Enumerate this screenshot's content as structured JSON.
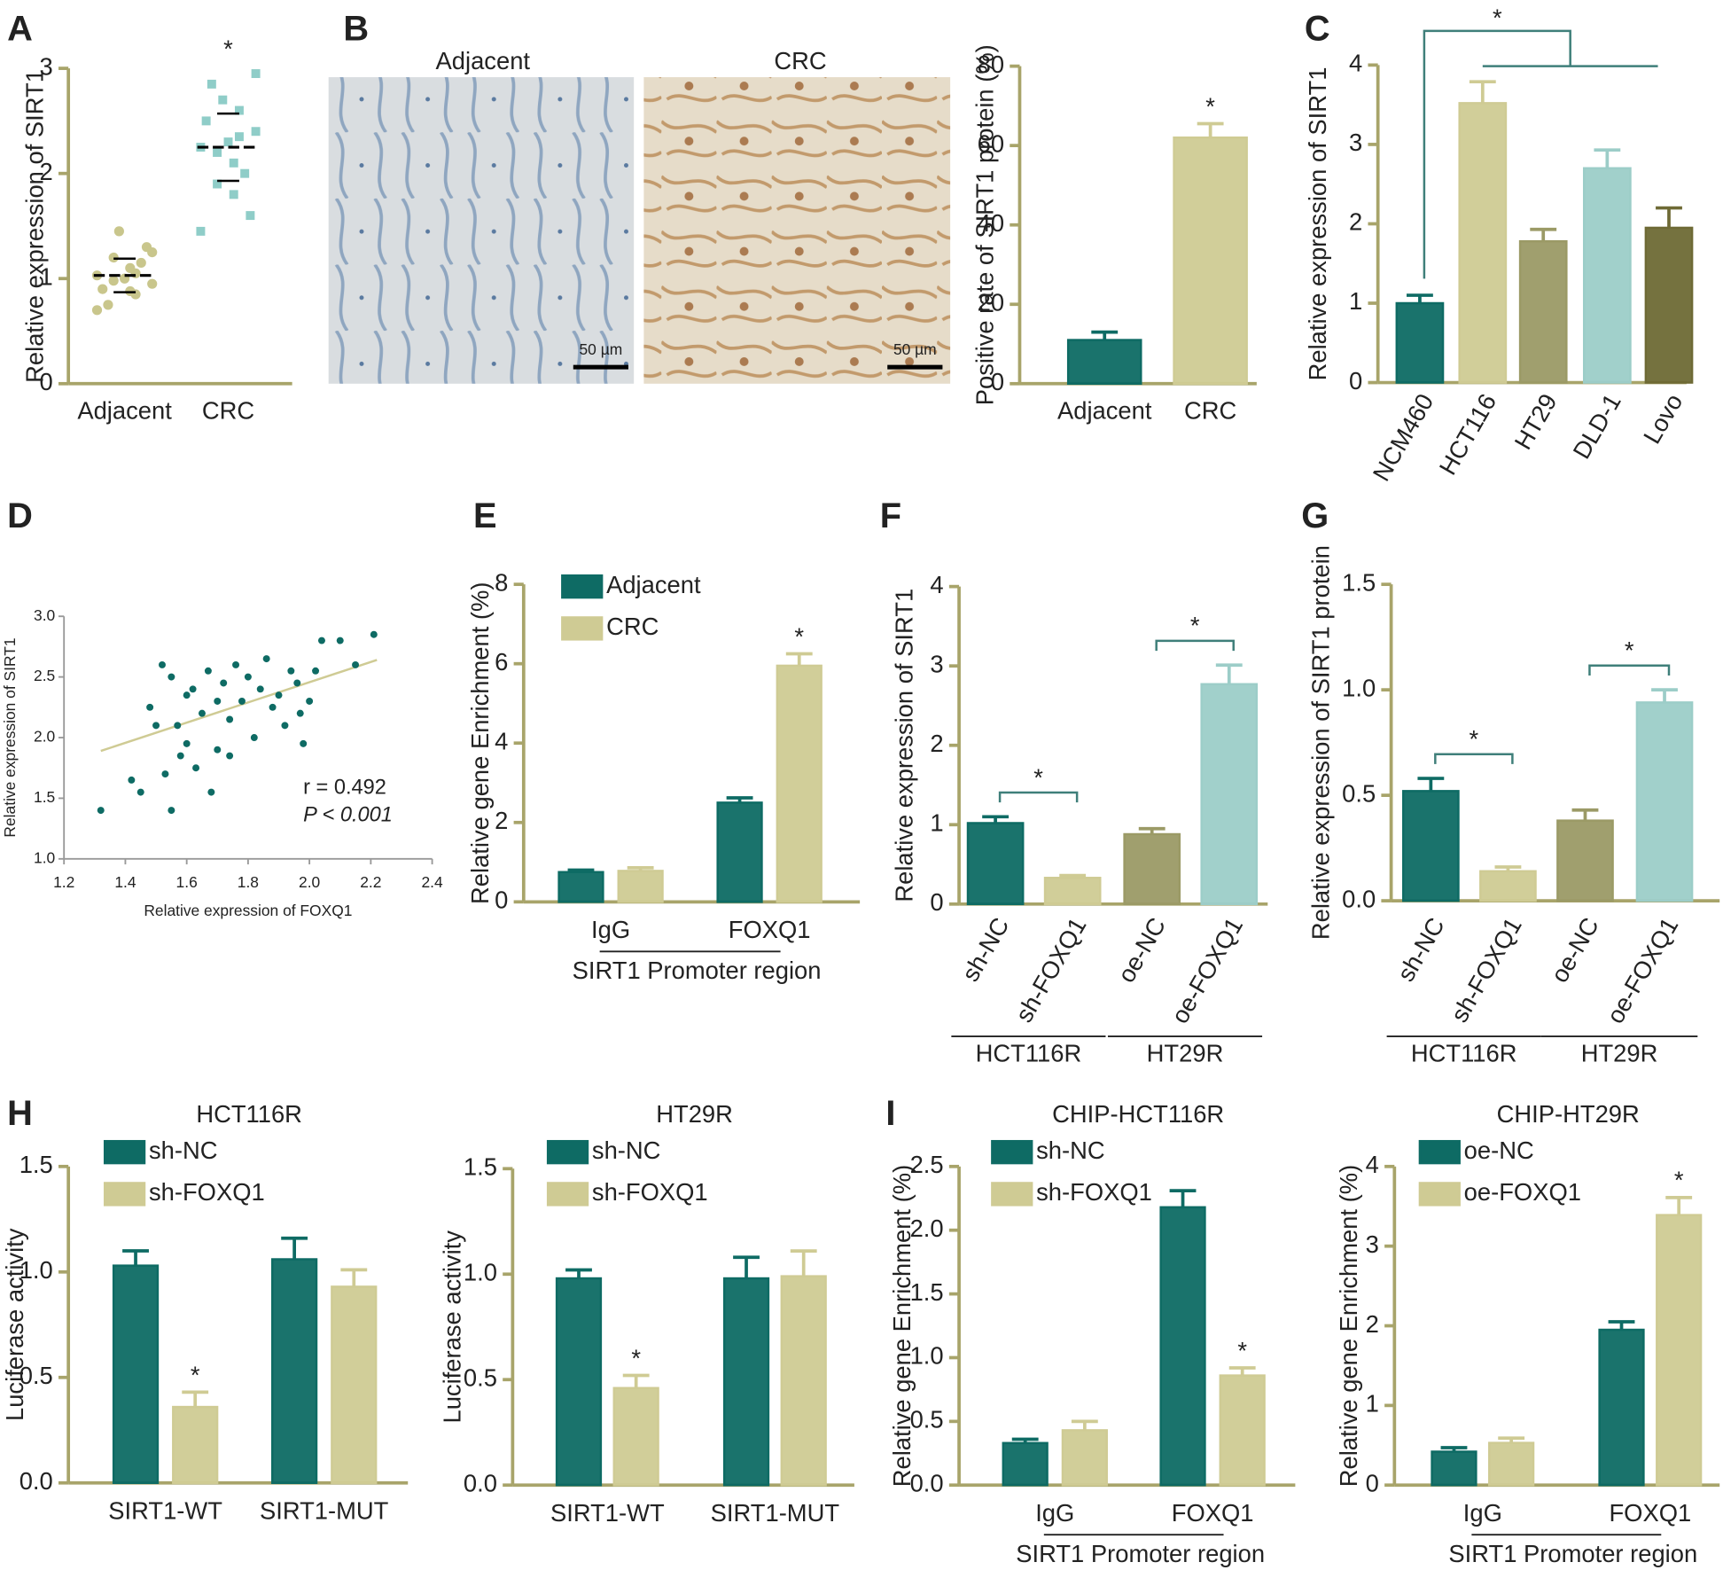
{
  "chart_data": [
    {
      "type": "strip",
      "panel": "A",
      "ylabel": "Relative expression of SIRT1",
      "categories": [
        "Adjacent",
        "CRC"
      ],
      "series": [
        {
          "color": "#c9c68c",
          "marker": "circle",
          "values": [
            1.03,
            0.85,
            1.2,
            0.95,
            1.1,
            0.75,
            1.3,
            1.0,
            0.9,
            1.15,
            1.45,
            0.7,
            1.05,
            0.98,
            1.25,
            0.88
          ],
          "mean": 1.03,
          "sd": 0.16
        },
        {
          "color": "#8fcdc8",
          "marker": "square",
          "values": [
            2.25,
            2.6,
            1.9,
            2.4,
            2.1,
            2.85,
            1.6,
            2.3,
            2.5,
            2.0,
            2.7,
            1.45,
            2.35,
            2.2,
            2.95,
            1.8
          ],
          "mean": 2.25,
          "sd": 0.32,
          "significance": "*"
        }
      ],
      "ylim": [
        0,
        3
      ],
      "yticks": [
        0,
        1,
        2,
        3
      ]
    },
    {
      "type": "bar",
      "images": [
        "Adjacent",
        "CRC"
      ],
      "scale_bar": "50 µm",
      "panel": "B",
      "ylabel": "Positive rate of SIRT1 protein (%)",
      "categories": [
        "Adjacent",
        "CRC"
      ],
      "values": [
        11,
        62
      ],
      "errors": [
        2,
        3.5
      ],
      "colors": [
        "#0e6b64",
        "#cfcb94"
      ],
      "significance": [
        null,
        "*"
      ],
      "ylim": [
        0,
        80
      ],
      "yticks": [
        0,
        20,
        40,
        60,
        80
      ]
    },
    {
      "type": "bar",
      "panel": "C",
      "ylabel": "Relative expression of SIRT1",
      "categories": [
        "NCM460",
        "HCT116",
        "HT29",
        "DLD-1",
        "Lovo"
      ],
      "values": [
        1.0,
        3.52,
        1.78,
        2.7,
        1.95
      ],
      "errors": [
        0.1,
        0.27,
        0.15,
        0.23,
        0.25
      ],
      "colors": [
        "#0e6b64",
        "#cfcb94",
        "#9b9a66",
        "#9ccdc8",
        "#6e6a35"
      ],
      "comparisons": [
        {
          "from": 0,
          "to": [
            1,
            4
          ],
          "label": "*"
        }
      ],
      "ylim": [
        0,
        4
      ],
      "yticks": [
        0,
        1,
        2,
        3,
        4
      ]
    },
    {
      "type": "scatter",
      "panel": "D",
      "xlabel": "Relative expression of FOXQ1",
      "ylabel": "Relative expression of SIRT1",
      "color": "#0e6b64",
      "x": [
        1.32,
        1.42,
        1.45,
        1.48,
        1.5,
        1.52,
        1.55,
        1.55,
        1.57,
        1.58,
        1.6,
        1.6,
        1.62,
        1.63,
        1.65,
        1.67,
        1.68,
        1.7,
        1.7,
        1.72,
        1.74,
        1.76,
        1.78,
        1.8,
        1.82,
        1.84,
        1.86,
        1.88,
        1.9,
        1.92,
        1.94,
        1.96,
        1.97,
        1.98,
        2.0,
        2.02,
        2.04,
        2.1,
        2.15,
        2.21,
        1.53,
        1.74
      ],
      "y": [
        1.4,
        1.65,
        1.55,
        2.25,
        2.1,
        2.6,
        1.4,
        2.5,
        2.1,
        1.85,
        2.35,
        1.95,
        2.4,
        1.75,
        2.2,
        2.55,
        1.55,
        2.3,
        1.9,
        2.45,
        2.15,
        2.6,
        2.3,
        2.5,
        2.0,
        2.4,
        2.65,
        2.25,
        2.35,
        2.1,
        2.55,
        2.45,
        2.2,
        1.95,
        2.3,
        2.55,
        2.8,
        2.8,
        2.6,
        2.85,
        1.7,
        1.85
      ],
      "fit": {
        "color": "#cfcb94",
        "x": [
          1.32,
          2.22
        ],
        "y": [
          1.89,
          2.64
        ]
      },
      "annotations": [
        "r = 0.492",
        "P < 0.001"
      ],
      "xlim": [
        1.2,
        2.4
      ],
      "xticks": [
        1.2,
        1.4,
        1.6,
        1.8,
        {
          "value": 2,
          "label": "2.0"
        },
        2.2,
        2.4
      ],
      "ylim": [
        1,
        3
      ],
      "yticks": [
        {
          "value": 1,
          "label": "1.0"
        },
        1.5,
        {
          "value": 2,
          "label": "2.0"
        },
        2.5,
        {
          "value": 3,
          "label": "3.0"
        }
      ]
    },
    {
      "type": "grouped_bar",
      "panel": "E",
      "ylabel": "Relative gene Enrichment (%)",
      "xlabel": "SIRT1 Promoter region",
      "categories": [
        "IgG",
        "FOXQ1"
      ],
      "series": [
        {
          "name": "Adjacent",
          "color": "#0e6b64",
          "values": [
            0.75,
            2.5
          ],
          "errors": [
            0.05,
            0.12
          ]
        },
        {
          "name": "CRC",
          "color": "#cfcb94",
          "values": [
            0.78,
            5.95
          ],
          "errors": [
            0.08,
            0.3
          ],
          "significance": [
            null,
            "*"
          ]
        }
      ],
      "ylim": [
        0,
        8
      ],
      "yticks": [
        0,
        2,
        4,
        6,
        8
      ]
    },
    {
      "type": "bar",
      "panel": "F",
      "ylabel": "Relative expression of SIRT1",
      "categories": [
        "sh-NC",
        "sh-FOXQ1",
        "oe-NC",
        "oe-FOXQ1"
      ],
      "values": [
        1.02,
        0.33,
        0.88,
        2.77
      ],
      "errors": [
        0.08,
        0.03,
        0.07,
        0.24
      ],
      "colors": [
        "#0e6b64",
        "#cfcb94",
        "#9b9a66",
        "#9ccdc8"
      ],
      "groups": [
        {
          "label": "HCT116R",
          "range": [
            0,
            1
          ]
        },
        {
          "label": "HT29R",
          "range": [
            2,
            3
          ]
        }
      ],
      "comparisons": [
        {
          "from": 0,
          "to": [
            1,
            1
          ],
          "label": "*"
        },
        {
          "from": 2,
          "to": [
            3,
            3
          ],
          "label": "*"
        }
      ],
      "ylim": [
        0,
        4
      ],
      "yticks": [
        0,
        1,
        2,
        3,
        4
      ]
    },
    {
      "type": "bar",
      "panel": "G",
      "ylabel": "Relative expression of SIRT1 protein",
      "categories": [
        "sh-NC",
        "sh-FOXQ1",
        "oe-NC",
        "oe-FOXQ1"
      ],
      "values": [
        0.52,
        0.14,
        0.38,
        0.94
      ],
      "errors": [
        0.06,
        0.02,
        0.05,
        0.06
      ],
      "colors": [
        "#0e6b64",
        "#cfcb94",
        "#9b9a66",
        "#9ccdc8"
      ],
      "groups": [
        {
          "label": "HCT116R",
          "range": [
            0,
            1
          ]
        },
        {
          "label": "HT29R",
          "range": [
            2,
            3
          ]
        }
      ],
      "comparisons": [
        {
          "from": 0,
          "to": [
            1,
            1
          ],
          "label": "*"
        },
        {
          "from": 2,
          "to": [
            3,
            3
          ],
          "label": "*"
        }
      ],
      "ylim": [
        0,
        1.5
      ],
      "yticks": [
        {
          "value": 0,
          "label": "0.0"
        },
        0.5,
        {
          "value": 1,
          "label": "1.0"
        },
        1.5
      ]
    },
    {
      "type": "grouped_bar",
      "panel": "H",
      "title": "HCT116R",
      "ylabel": "Luciferase activity",
      "categories": [
        "SIRT1-WT",
        "SIRT1-MUT"
      ],
      "series": [
        {
          "name": "sh-NC",
          "color": "#0e6b64",
          "values": [
            1.03,
            1.06
          ],
          "errors": [
            0.07,
            0.1
          ]
        },
        {
          "name": "sh-FOXQ1",
          "color": "#cfcb94",
          "values": [
            0.36,
            0.93
          ],
          "errors": [
            0.07,
            0.08
          ],
          "significance": [
            "*",
            null
          ]
        }
      ],
      "ylim": [
        0,
        1.5
      ],
      "yticks": [
        {
          "value": 0,
          "label": "0.0"
        },
        0.5,
        {
          "value": 1,
          "label": "1.0"
        },
        1.5
      ]
    },
    {
      "type": "grouped_bar",
      "title": "HT29R",
      "ylabel": "Luciferase activity",
      "categories": [
        "SIRT1-WT",
        "SIRT1-MUT"
      ],
      "series": [
        {
          "name": "sh-NC",
          "color": "#0e6b64",
          "values": [
            0.98,
            0.98
          ],
          "errors": [
            0.04,
            0.1
          ]
        },
        {
          "name": "sh-FOXQ1",
          "color": "#cfcb94",
          "values": [
            0.46,
            0.99
          ],
          "errors": [
            0.06,
            0.12
          ],
          "significance": [
            "*",
            null
          ]
        }
      ],
      "ylim": [
        0,
        1.5
      ],
      "yticks": [
        {
          "value": 0,
          "label": "0.0"
        },
        0.5,
        {
          "value": 1,
          "label": "1.0"
        },
        1.5
      ]
    },
    {
      "type": "grouped_bar",
      "panel": "I",
      "title": "CHIP-HCT116R",
      "ylabel": "Relative gene Enrichment (%)",
      "xlabel": "SIRT1 Promoter region",
      "categories": [
        "IgG",
        "FOXQ1"
      ],
      "series": [
        {
          "name": "sh-NC",
          "color": "#0e6b64",
          "values": [
            0.33,
            2.18
          ],
          "errors": [
            0.03,
            0.13
          ]
        },
        {
          "name": "sh-FOXQ1",
          "color": "#cfcb94",
          "values": [
            0.43,
            0.86
          ],
          "errors": [
            0.07,
            0.06
          ],
          "significance": [
            null,
            "*"
          ]
        }
      ],
      "ylim": [
        0,
        2.5
      ],
      "yticks": [
        {
          "value": 0,
          "label": "0.0"
        },
        0.5,
        {
          "value": 1,
          "label": "1.0"
        },
        1.5,
        {
          "value": 2,
          "label": "2.0"
        },
        2.5
      ]
    },
    {
      "type": "grouped_bar",
      "title": "CHIP-HT29R",
      "ylabel": "Relative gene Enrichment (%)",
      "xlabel": "SIRT1 Promoter region",
      "categories": [
        "IgG",
        "FOXQ1"
      ],
      "series": [
        {
          "name": "oe-NC",
          "color": "#0e6b64",
          "values": [
            0.42,
            1.95
          ],
          "errors": [
            0.05,
            0.1
          ]
        },
        {
          "name": "oe-FOXQ1",
          "color": "#cfcb94",
          "values": [
            0.53,
            3.39
          ],
          "errors": [
            0.06,
            0.22
          ],
          "significance": [
            null,
            "*"
          ]
        }
      ],
      "ylim": [
        0,
        4
      ],
      "yticks": [
        0,
        1,
        2,
        3,
        4
      ]
    }
  ]
}
